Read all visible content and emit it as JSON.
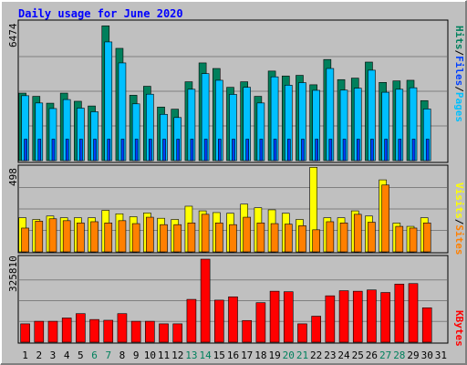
{
  "title": "Daily usage for June 2020",
  "colors": {
    "background": "#c0c0c0",
    "frame_light": "#ffffff",
    "frame_dark": "#808080",
    "title": "#0000ff",
    "hits": "#00805c",
    "files": "#00c0ff",
    "pages": "#0040ff",
    "visits": "#ffff00",
    "sites": "#ff8000",
    "kbytes": "#ff0000",
    "weekend_day": "#00805c",
    "weekday": "#000000",
    "grid": "#808080"
  },
  "legend": {
    "top": [
      {
        "text": "Hits",
        "color": "#00805c"
      },
      {
        "text": "/",
        "color": "#000000"
      },
      {
        "text": "Files",
        "color": "#0040ff"
      },
      {
        "text": "/",
        "color": "#000000"
      },
      {
        "text": "Pages",
        "color": "#00c0ff"
      }
    ],
    "middle": [
      {
        "text": "Visits",
        "color": "#ffff00"
      },
      {
        "text": "/",
        "color": "#000000"
      },
      {
        "text": "Sites",
        "color": "#ff8000"
      }
    ],
    "bottom": [
      {
        "text": "KBytes",
        "color": "#ff0000"
      }
    ]
  },
  "chart_data": [
    {
      "type": "bar",
      "panel": "hits-files-pages",
      "y_axis_label": "6474",
      "ylim": [
        0,
        6474
      ],
      "categories": [
        "1",
        "2",
        "3",
        "4",
        "5",
        "6",
        "7",
        "8",
        "9",
        "10",
        "11",
        "12",
        "13",
        "14",
        "15",
        "16",
        "17",
        "18",
        "19",
        "20",
        "21",
        "22",
        "23",
        "24",
        "25",
        "26",
        "27",
        "28",
        "29",
        "30",
        "31"
      ],
      "weekend_days": [
        "6",
        "7",
        "13",
        "14",
        "20",
        "21",
        "27",
        "28"
      ],
      "series": [
        {
          "name": "Hits",
          "values": [
            3150,
            3000,
            2680,
            3150,
            2770,
            2550,
            6290,
            5240,
            3050,
            3470,
            2500,
            2400,
            3680,
            4560,
            4300,
            3420,
            3680,
            3000,
            4180,
            3950,
            3980,
            3540,
            4720,
            3780,
            3850,
            4600,
            3650,
            3720,
            3750,
            2800,
            null
          ]
        },
        {
          "name": "Files",
          "values": [
            3030,
            2690,
            2430,
            2850,
            2450,
            2280,
            5540,
            4560,
            2650,
            3100,
            2160,
            2010,
            3330,
            4060,
            3750,
            3090,
            3420,
            2690,
            3910,
            3520,
            3640,
            3280,
            4300,
            3290,
            3380,
            4220,
            3190,
            3330,
            3400,
            2410,
            null
          ]
        },
        {
          "name": "Pages",
          "values": [
            1000,
            1000,
            1000,
            1000,
            1000,
            1000,
            1000,
            1000,
            1000,
            1000,
            1000,
            1000,
            1000,
            1000,
            1000,
            1000,
            1000,
            1000,
            1000,
            1000,
            1000,
            1000,
            1000,
            1000,
            1000,
            1000,
            1000,
            1000,
            1000,
            1000,
            null
          ]
        }
      ]
    },
    {
      "type": "bar",
      "panel": "visits-sites",
      "y_axis_label": "498",
      "ylim": [
        0,
        498
      ],
      "categories": [
        "1",
        "2",
        "3",
        "4",
        "5",
        "6",
        "7",
        "8",
        "9",
        "10",
        "11",
        "12",
        "13",
        "14",
        "15",
        "16",
        "17",
        "18",
        "19",
        "20",
        "21",
        "22",
        "23",
        "24",
        "25",
        "26",
        "27",
        "28",
        "29",
        "30",
        "31"
      ],
      "series": [
        {
          "name": "Visits",
          "values": [
            198,
            188,
            208,
            198,
            198,
            198,
            241,
            221,
            204,
            226,
            195,
            188,
            265,
            238,
            228,
            224,
            277,
            256,
            244,
            224,
            188,
            491,
            198,
            198,
            238,
            208,
            418,
            167,
            148,
            198,
            null
          ]
        },
        {
          "name": "Sites",
          "values": [
            138,
            178,
            192,
            181,
            168,
            175,
            168,
            181,
            164,
            201,
            158,
            158,
            168,
            218,
            168,
            158,
            201,
            168,
            164,
            161,
            152,
            128,
            175,
            168,
            218,
            172,
            388,
            148,
            138,
            168,
            null
          ]
        }
      ]
    },
    {
      "type": "bar",
      "panel": "kbytes",
      "y_axis_label": "325810",
      "ylim": [
        0,
        325810
      ],
      "categories": [
        "1",
        "2",
        "3",
        "4",
        "5",
        "6",
        "7",
        "8",
        "9",
        "10",
        "11",
        "12",
        "13",
        "14",
        "15",
        "16",
        "17",
        "18",
        "19",
        "20",
        "21",
        "22",
        "23",
        "24",
        "25",
        "26",
        "27",
        "28",
        "29",
        "30",
        "31"
      ],
      "series": [
        {
          "name": "KBytes",
          "values": [
            72000,
            82000,
            82000,
            95000,
            112000,
            89000,
            86000,
            112000,
            82000,
            82000,
            72000,
            72000,
            168000,
            325810,
            165000,
            178000,
            85000,
            155000,
            200000,
            198000,
            72000,
            102000,
            182000,
            202000,
            200000,
            205000,
            195000,
            228000,
            230000,
            135000,
            null
          ]
        }
      ]
    }
  ]
}
